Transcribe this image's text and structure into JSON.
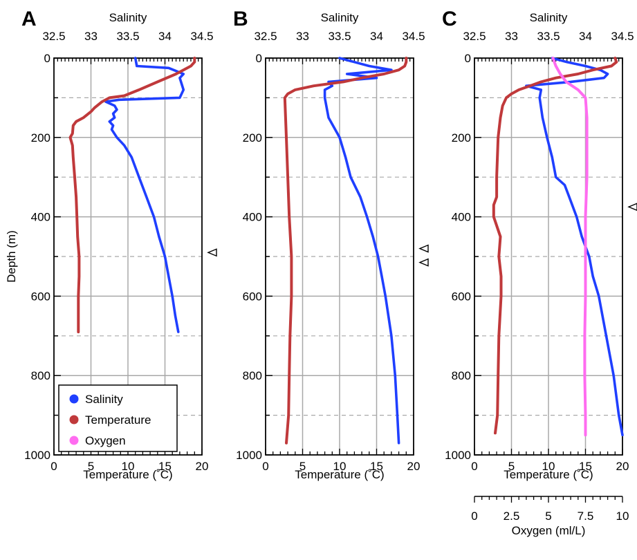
{
  "figure": {
    "axes_labels": {
      "salinity": "Salinity",
      "temperature": "Temperature (˚C)",
      "depth": "Depth (m)",
      "oxygen": "Oxygen (ml/L)"
    },
    "legend": [
      {
        "label": "Salinity",
        "color": "#1f3fff"
      },
      {
        "label": "Temperature",
        "color": "#c0393b"
      },
      {
        "label": "Oxygen",
        "color": "#ff6cf0"
      }
    ]
  },
  "chart_data": [
    {
      "type": "line",
      "panel": "A",
      "ylabel": "Depth (m)",
      "ylim": [
        1000,
        0
      ],
      "yticks": [
        0,
        200,
        400,
        600,
        800,
        1000
      ],
      "xlabel": "Temperature (˚C)",
      "xlim": [
        0,
        20
      ],
      "xticks": [
        0,
        5,
        10,
        15,
        20
      ],
      "x2label": "Salinity",
      "x2lim": [
        32.5,
        34.5
      ],
      "x2ticks": [
        "32.5",
        "33",
        "33.5",
        "34",
        "34.5"
      ],
      "grid": true,
      "legend_position": "bottom-left",
      "series": [
        {
          "name": "Salinity",
          "units": "salinity",
          "color": "#1f3fff",
          "depth": [
            0,
            20,
            25,
            40,
            50,
            80,
            100,
            105,
            110,
            120,
            130,
            140,
            150,
            160,
            170,
            180,
            200,
            220,
            250,
            300,
            350,
            400,
            450,
            500,
            550,
            600,
            650,
            690
          ],
          "values": [
            33.6,
            33.62,
            34.05,
            34.25,
            34.2,
            34.25,
            34.2,
            33.38,
            33.2,
            33.32,
            33.35,
            33.3,
            33.32,
            33.25,
            33.3,
            33.28,
            33.35,
            33.45,
            33.55,
            33.65,
            33.75,
            33.85,
            33.92,
            34.0,
            34.05,
            34.1,
            34.14,
            34.18
          ]
        },
        {
          "name": "Temperature",
          "units": "temperature",
          "color": "#c0393b",
          "depth": [
            0,
            10,
            20,
            40,
            60,
            80,
            95,
            100,
            110,
            125,
            135,
            150,
            160,
            170,
            190,
            200,
            220,
            250,
            300,
            350,
            400,
            450,
            500,
            550,
            600,
            650,
            690
          ],
          "values": [
            19,
            19,
            18.5,
            16.5,
            14,
            11.5,
            9.5,
            7.5,
            6.5,
            5.5,
            5,
            4,
            3,
            2.6,
            2.5,
            2.2,
            2.5,
            2.6,
            2.8,
            3,
            3.1,
            3.2,
            3.4,
            3.4,
            3.3,
            3.3,
            3.3
          ]
        }
      ],
      "annotations": [
        {
          "type": "triangle-marker",
          "depth": 490
        }
      ]
    },
    {
      "type": "line",
      "panel": "B",
      "ylabel": "",
      "ylim": [
        1000,
        0
      ],
      "yticks": [
        0,
        200,
        400,
        600,
        800,
        1000
      ],
      "xlabel": "Temperature (˚C)",
      "xlim": [
        0,
        20
      ],
      "xticks": [
        0,
        5,
        10,
        15,
        20
      ],
      "x2label": "Salinity",
      "x2lim": [
        32.5,
        34.5
      ],
      "x2ticks": [
        "32.5",
        "33",
        "33.5",
        "34",
        "34.5"
      ],
      "grid": true,
      "series": [
        {
          "name": "Salinity",
          "units": "salinity",
          "color": "#1f3fff",
          "depth": [
            0,
            20,
            30,
            40,
            50,
            60,
            70,
            80,
            100,
            150,
            200,
            250,
            300,
            350,
            400,
            450,
            500,
            550,
            600,
            700,
            800,
            900,
            970
          ],
          "values": [
            33.5,
            33.9,
            34.2,
            33.6,
            34.0,
            33.35,
            33.4,
            33.3,
            33.3,
            33.35,
            33.5,
            33.58,
            33.65,
            33.78,
            33.87,
            33.95,
            34.02,
            34.07,
            34.12,
            34.2,
            34.25,
            34.28,
            34.3
          ]
        },
        {
          "name": "Temperature",
          "units": "temperature",
          "color": "#c0393b",
          "depth": [
            0,
            10,
            20,
            30,
            40,
            50,
            60,
            70,
            80,
            90,
            100,
            150,
            200,
            300,
            400,
            500,
            600,
            700,
            800,
            900,
            970
          ],
          "values": [
            19,
            19,
            18.8,
            18,
            16,
            13,
            10.5,
            6.5,
            4,
            3,
            2.6,
            2.7,
            2.8,
            3,
            3.2,
            3.5,
            3.5,
            3.3,
            3.2,
            3.1,
            2.8
          ]
        }
      ],
      "annotations": [
        {
          "type": "triangle-marker",
          "depth": 480
        },
        {
          "type": "triangle-marker",
          "depth": 515
        }
      ]
    },
    {
      "type": "line",
      "panel": "C",
      "ylabel": "",
      "ylim": [
        1000,
        0
      ],
      "yticks": [
        0,
        200,
        400,
        600,
        800,
        1000
      ],
      "xlabel": "Temperature (˚C)",
      "xlim": [
        0,
        20
      ],
      "xticks": [
        0,
        5,
        10,
        15,
        20
      ],
      "x2label": "Salinity",
      "x2lim": [
        32.5,
        34.5
      ],
      "x2ticks": [
        "32.5",
        "33",
        "33.5",
        "34",
        "34.5"
      ],
      "x3label": "Oxygen (ml/L)",
      "x3lim": [
        0,
        10
      ],
      "x3ticks": [
        "0",
        "2.5",
        "5",
        "7.5",
        "10"
      ],
      "grid": true,
      "series": [
        {
          "name": "Salinity",
          "units": "salinity",
          "color": "#1f3fff",
          "depth": [
            0,
            10,
            20,
            30,
            40,
            50,
            60,
            70,
            80,
            100,
            150,
            200,
            250,
            300,
            320,
            350,
            400,
            450,
            500,
            550,
            600,
            700,
            800,
            900,
            950
          ],
          "values": [
            33.55,
            33.75,
            34.0,
            34.2,
            34.3,
            34.25,
            33.8,
            33.2,
            33.4,
            33.38,
            33.42,
            33.48,
            33.55,
            33.6,
            33.72,
            33.78,
            33.88,
            33.95,
            34.05,
            34.1,
            34.18,
            34.28,
            34.38,
            34.45,
            34.5
          ]
        },
        {
          "name": "Temperature",
          "units": "temperature",
          "color": "#c0393b",
          "depth": [
            0,
            10,
            20,
            30,
            40,
            50,
            60,
            70,
            80,
            90,
            100,
            120,
            150,
            200,
            300,
            350,
            370,
            400,
            450,
            500,
            550,
            600,
            700,
            800,
            900,
            945
          ],
          "values": [
            19,
            19.2,
            18.5,
            16,
            14,
            11,
            9,
            7.5,
            6,
            5,
            4.3,
            3.8,
            3.5,
            3.2,
            3,
            3,
            2.6,
            2.6,
            3.5,
            3.3,
            3.6,
            3.6,
            3.3,
            3.2,
            3.1,
            2.8
          ]
        },
        {
          "name": "Oxygen",
          "units": "oxygen",
          "color": "#ff6cf0",
          "depth": [
            0,
            20,
            40,
            60,
            70,
            80,
            100,
            150,
            200,
            300,
            400,
            500,
            600,
            700,
            800,
            900,
            950
          ],
          "values": [
            5.3,
            5.5,
            5.8,
            6.2,
            6.6,
            7.0,
            7.5,
            7.6,
            7.6,
            7.6,
            7.5,
            7.5,
            7.5,
            7.45,
            7.45,
            7.5,
            7.5
          ]
        }
      ],
      "annotations": [
        {
          "type": "triangle-marker",
          "depth": 375
        }
      ]
    }
  ]
}
